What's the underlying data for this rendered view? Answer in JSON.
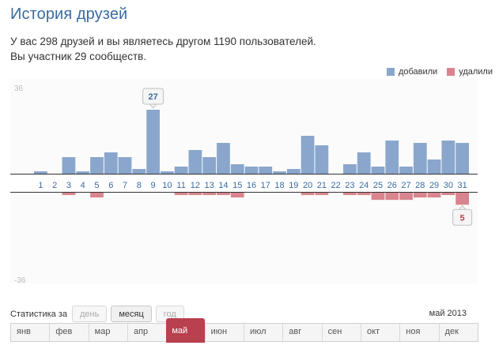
{
  "page": {
    "title": "История друзей",
    "summary_line1": "У вас 298 друзей и вы являетесь другом 1190 пользователей.",
    "summary_line2": "Вы участник 29 сообществ."
  },
  "legend": {
    "added_label": "добавили",
    "removed_label": "удалили",
    "added_color": "#8aa6cc",
    "removed_color": "#d9858f"
  },
  "chart_data": {
    "type": "bar",
    "x": [
      "1",
      "2",
      "3",
      "4",
      "5",
      "6",
      "7",
      "8",
      "9",
      "10",
      "11",
      "12",
      "13",
      "14",
      "15",
      "16",
      "17",
      "18",
      "19",
      "20",
      "21",
      "22",
      "23",
      "24",
      "25",
      "26",
      "27",
      "28",
      "29",
      "30",
      "31"
    ],
    "series": [
      {
        "name": "добавили",
        "values": [
          1,
          0,
          7,
          1,
          7,
          9,
          7,
          2,
          27,
          1,
          3,
          10,
          7,
          13,
          4,
          3,
          3,
          1,
          2,
          16,
          12,
          0,
          4,
          9,
          3,
          14,
          3,
          13,
          6,
          14,
          13
        ]
      },
      {
        "name": "удалили",
        "values": [
          0,
          0,
          1,
          0,
          2,
          0,
          0,
          0,
          0,
          0,
          1,
          1,
          1,
          1,
          2,
          0,
          0,
          0,
          0,
          1,
          1,
          0,
          1,
          1,
          3,
          3,
          3,
          2,
          2,
          1,
          5
        ]
      }
    ],
    "ylim": [
      -36,
      36
    ],
    "y_top_label": "36",
    "y_bottom_label": "-36",
    "callouts": [
      {
        "series": "добавили",
        "day": "9",
        "label": "27"
      },
      {
        "series": "удалили",
        "day": "31",
        "label": "5"
      }
    ]
  },
  "stats": {
    "label": "Статистика за",
    "periods": [
      "день",
      "месяц",
      "год"
    ],
    "active_period": "месяц",
    "current": "май 2013"
  },
  "months": [
    "янв",
    "фев",
    "мар",
    "апр",
    "май",
    "июн",
    "июл",
    "авг",
    "сен",
    "окт",
    "ноя",
    "дек"
  ],
  "active_month": "май"
}
